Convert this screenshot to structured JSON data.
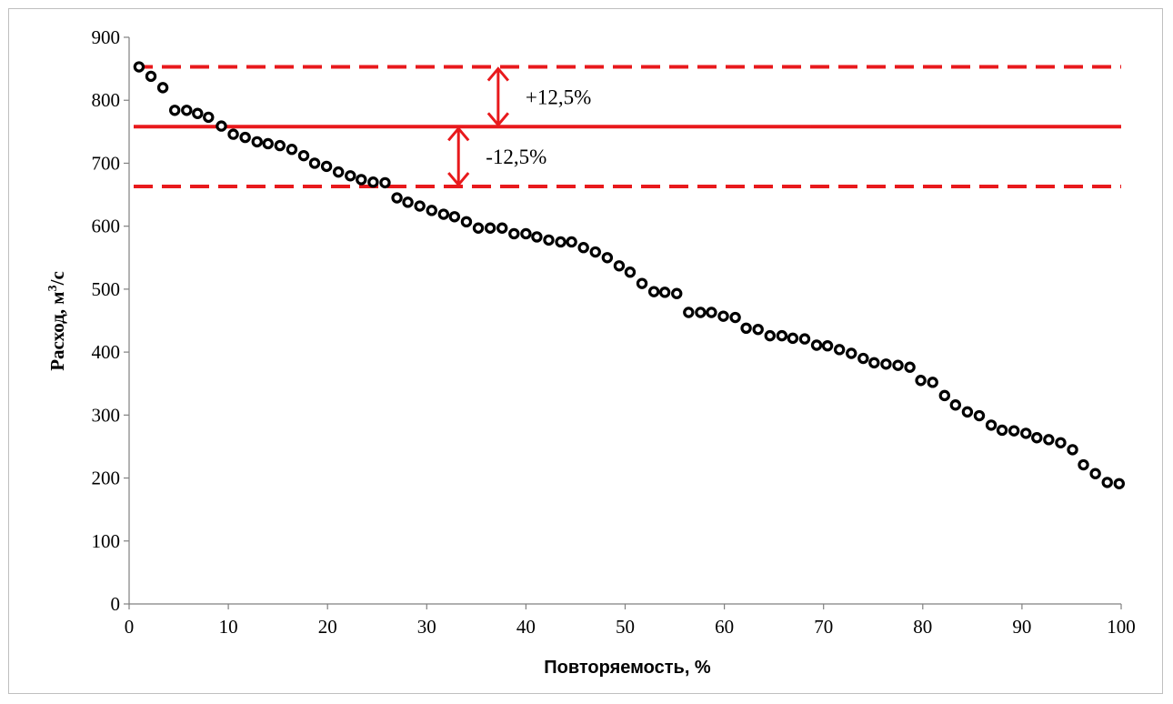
{
  "chart_data": {
    "type": "scatter",
    "xlabel": "Повторяемость, %",
    "ylabel_main": "Расход, м",
    "ylabel_sup": "3",
    "ylabel_tail": "/с",
    "xlim": [
      0,
      100
    ],
    "ylim": [
      0,
      900
    ],
    "xticks": [
      0,
      10,
      20,
      30,
      40,
      50,
      60,
      70,
      80,
      90,
      100
    ],
    "yticks": [
      0,
      100,
      200,
      300,
      400,
      500,
      600,
      700,
      800,
      900
    ],
    "grid": false,
    "points": [
      [
        1,
        853
      ],
      [
        2.2,
        838
      ],
      [
        3.4,
        820
      ],
      [
        4.6,
        784
      ],
      [
        5.8,
        784
      ],
      [
        6.9,
        779
      ],
      [
        8.0,
        773
      ],
      [
        9.3,
        759
      ],
      [
        10.5,
        746
      ],
      [
        11.7,
        741
      ],
      [
        12.9,
        734
      ],
      [
        14.0,
        731
      ],
      [
        15.2,
        728
      ],
      [
        16.4,
        722
      ],
      [
        17.6,
        712
      ],
      [
        18.7,
        700
      ],
      [
        19.9,
        695
      ],
      [
        21.1,
        686
      ],
      [
        22.3,
        680
      ],
      [
        23.4,
        674
      ],
      [
        24.6,
        670
      ],
      [
        25.8,
        669
      ],
      [
        27.0,
        645
      ],
      [
        28.1,
        638
      ],
      [
        29.3,
        632
      ],
      [
        30.5,
        625
      ],
      [
        31.7,
        619
      ],
      [
        32.8,
        615
      ],
      [
        34.0,
        607
      ],
      [
        35.2,
        597
      ],
      [
        36.4,
        597
      ],
      [
        37.6,
        597
      ],
      [
        38.8,
        588
      ],
      [
        40.0,
        588
      ],
      [
        41.1,
        583
      ],
      [
        42.3,
        578
      ],
      [
        43.5,
        575
      ],
      [
        44.6,
        575
      ],
      [
        45.8,
        566
      ],
      [
        47.0,
        559
      ],
      [
        48.2,
        550
      ],
      [
        49.4,
        537
      ],
      [
        50.5,
        527
      ],
      [
        51.7,
        509
      ],
      [
        52.9,
        496
      ],
      [
        54.0,
        495
      ],
      [
        55.2,
        493
      ],
      [
        56.4,
        463
      ],
      [
        57.6,
        463
      ],
      [
        58.7,
        463
      ],
      [
        59.9,
        457
      ],
      [
        61.1,
        455
      ],
      [
        62.2,
        438
      ],
      [
        63.4,
        436
      ],
      [
        64.6,
        426
      ],
      [
        65.8,
        426
      ],
      [
        66.9,
        422
      ],
      [
        68.1,
        421
      ],
      [
        69.3,
        411
      ],
      [
        70.4,
        410
      ],
      [
        71.6,
        404
      ],
      [
        72.8,
        398
      ],
      [
        74.0,
        390
      ],
      [
        75.1,
        383
      ],
      [
        76.3,
        381
      ],
      [
        77.5,
        379
      ],
      [
        78.7,
        376
      ],
      [
        79.8,
        355
      ],
      [
        81.0,
        352
      ],
      [
        82.2,
        331
      ],
      [
        83.3,
        316
      ],
      [
        84.5,
        305
      ],
      [
        85.7,
        299
      ],
      [
        86.9,
        284
      ],
      [
        88.0,
        276
      ],
      [
        89.2,
        275
      ],
      [
        90.4,
        271
      ],
      [
        91.5,
        264
      ],
      [
        92.7,
        261
      ],
      [
        93.9,
        256
      ],
      [
        95.1,
        245
      ],
      [
        96.2,
        221
      ],
      [
        97.4,
        207
      ],
      [
        98.6,
        193
      ],
      [
        99.8,
        191
      ]
    ],
    "reference_lines": [
      {
        "y": 853,
        "style": "dashed",
        "color": "#e8191c"
      },
      {
        "y": 758,
        "style": "solid",
        "color": "#e8191c"
      },
      {
        "y": 663,
        "style": "dashed",
        "color": "#e8191c"
      }
    ],
    "annotations": [
      {
        "text": "+12,5%",
        "arrow_x": 37.2,
        "y_from": 853,
        "y_to": 758
      },
      {
        "text": "-12,5%",
        "arrow_x": 33.2,
        "y_from": 758,
        "y_to": 663
      }
    ],
    "colors": {
      "reference": "#e8191c",
      "marker": "#000000",
      "axis": "#808080"
    }
  }
}
